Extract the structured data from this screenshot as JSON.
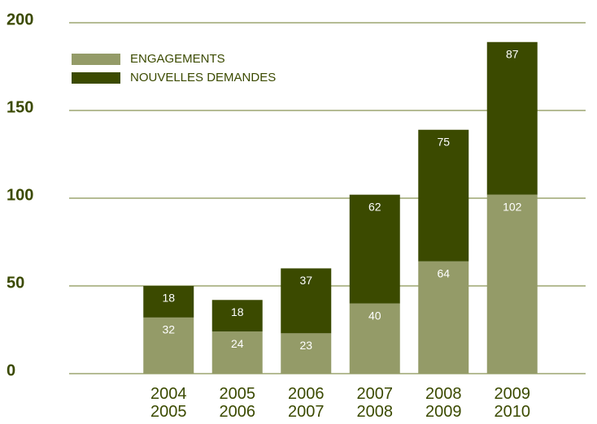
{
  "chart_data": {
    "type": "stacked_bar",
    "categories": [
      "2004\n2005",
      "2005\n2006",
      "2006\n2007",
      "2007\n2008",
      "2008\n2009",
      "2009\n2010"
    ],
    "series": [
      {
        "name": "ENGAGEMENTS",
        "color": "#949b68",
        "values": [
          32,
          24,
          23,
          40,
          64,
          102
        ]
      },
      {
        "name": "NOUVELLES DEMANDES",
        "color": "#3b4a00",
        "values": [
          18,
          18,
          37,
          62,
          75,
          87
        ]
      }
    ],
    "ylim": [
      0,
      200
    ],
    "yticks": [
      0,
      50,
      100,
      150,
      200
    ],
    "grid": true,
    "legend": "top-left"
  }
}
